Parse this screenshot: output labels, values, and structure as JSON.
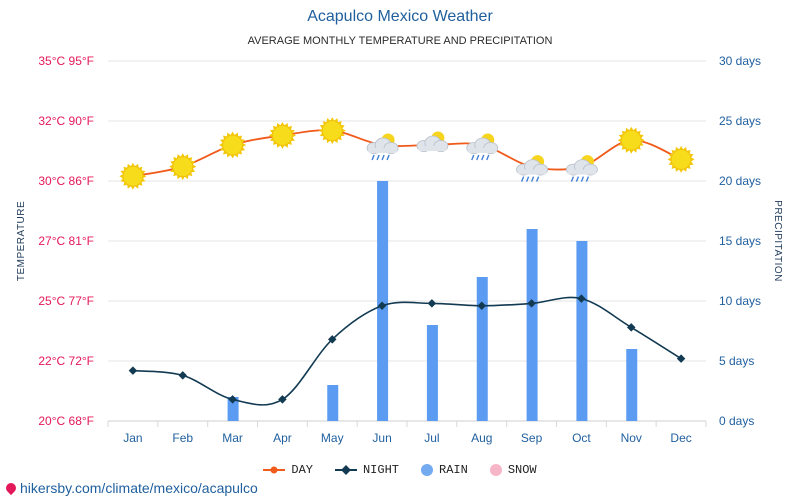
{
  "header": {
    "title": "Acapulco Mexico Weather",
    "subtitle": "AVERAGE MONTHLY TEMPERATURE AND PRECIPITATION"
  },
  "axes": {
    "left_title": "TEMPERATURE",
    "right_title": "PRECIPITATION",
    "left_ticks": [
      "20°C 68°F",
      "22°C 72°F",
      "25°C 77°F",
      "27°C 81°F",
      "30°C 86°F",
      "32°C 90°F",
      "35°C 95°F"
    ],
    "right_ticks": [
      "0 days",
      "5 days",
      "10 days",
      "15 days",
      "20 days",
      "25 days",
      "30 days"
    ]
  },
  "legend": {
    "day": "DAY",
    "night": "NIGHT",
    "rain": "RAIN",
    "snow": "SNOW"
  },
  "footer": {
    "url": "hikersby.com/climate/mexico/acapulco"
  },
  "colors": {
    "day": "#f05a1a",
    "night": "#123a52",
    "rain": "#5b9cf2",
    "snow": "#f7b6c8",
    "grid": "#e6e6e6"
  },
  "chart_data": {
    "type": "bar+line",
    "title": "Acapulco Mexico Weather",
    "subtitle": "AVERAGE MONTHLY TEMPERATURE AND PRECIPITATION",
    "categories": [
      "Jan",
      "Feb",
      "Mar",
      "Apr",
      "May",
      "Jun",
      "Jul",
      "Aug",
      "Sep",
      "Oct",
      "Nov",
      "Dec"
    ],
    "series": [
      {
        "name": "DAY",
        "axis": "temperature",
        "unit": "°C",
        "values": [
          30.2,
          30.6,
          31.5,
          31.9,
          32.1,
          31.5,
          31.5,
          31.5,
          30.6,
          30.6,
          31.7,
          30.9
        ]
      },
      {
        "name": "NIGHT",
        "axis": "temperature",
        "unit": "°C",
        "values": [
          22.1,
          21.9,
          20.9,
          20.9,
          23.4,
          24.8,
          24.9,
          24.8,
          24.9,
          25.1,
          23.9,
          22.6
        ]
      },
      {
        "name": "RAIN",
        "axis": "precipitation",
        "unit": "days",
        "values": [
          0,
          0,
          2,
          0,
          3,
          20,
          8,
          12,
          16,
          15,
          6,
          0
        ]
      },
      {
        "name": "SNOW",
        "axis": "precipitation",
        "unit": "days",
        "values": [
          0,
          0,
          0,
          0,
          0,
          0,
          0,
          0,
          0,
          0,
          0,
          0
        ]
      }
    ],
    "weather_icons": [
      "sun",
      "sun",
      "sun",
      "sun",
      "sun",
      "rain-cloud",
      "sun-cloud",
      "rain-cloud",
      "rain-cloud",
      "rain-cloud",
      "sun",
      "sun"
    ],
    "ylabel_left": "TEMPERATURE",
    "ylabel_right": "PRECIPITATION",
    "ylim_left": [
      20,
      35
    ],
    "ylim_right": [
      0,
      30
    ],
    "legend_position": "bottom"
  }
}
